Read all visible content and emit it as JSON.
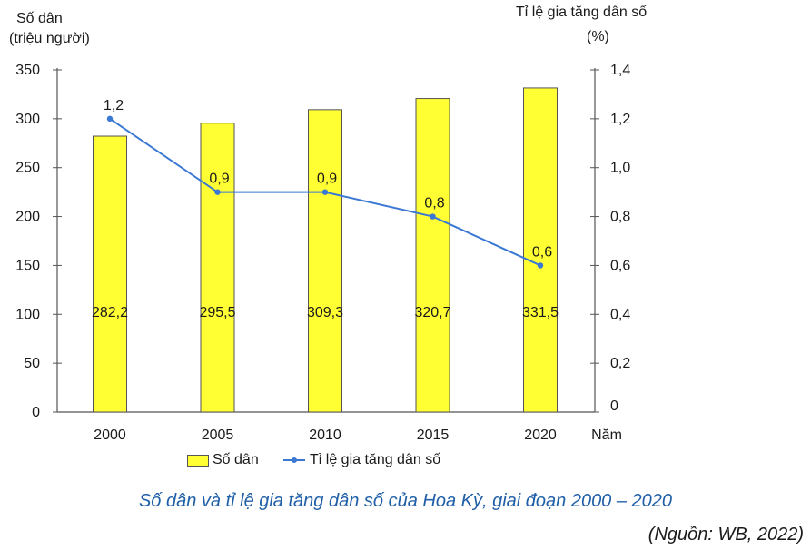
{
  "chart_data": {
    "type": "bar+line",
    "categories": [
      "2000",
      "2005",
      "2010",
      "2015",
      "2020"
    ],
    "series": [
      {
        "name": "Số dân",
        "type": "bar",
        "axis": "left",
        "values": [
          282.2,
          295.5,
          309.3,
          320.7,
          331.5
        ],
        "labels": [
          "282,2",
          "295,5",
          "309,3",
          "320,7",
          "331,5"
        ]
      },
      {
        "name": "Tỉ lệ gia tăng dân số",
        "type": "line",
        "axis": "right",
        "values": [
          1.2,
          0.9,
          0.9,
          0.8,
          0.6
        ],
        "labels": [
          "1,2",
          "0,9",
          "0,9",
          "0,8",
          "0,6"
        ]
      }
    ],
    "left_axis": {
      "label": "Số dân",
      "unit": "(triệu người)",
      "range": [
        0,
        350
      ],
      "ticks": [
        "0",
        "50",
        "100",
        "150",
        "200",
        "250",
        "300",
        "350"
      ]
    },
    "right_axis": {
      "label": "Tỉ lệ gia tăng dân số",
      "unit": "(%)",
      "range": [
        0,
        1.4
      ],
      "ticks": [
        "0",
        "0,2",
        "0,4",
        "0,6",
        "0,8",
        "1,0",
        "1,2",
        "1,4"
      ]
    },
    "xlabel": "Năm",
    "grid": false,
    "legend_position": "bottom",
    "colors": {
      "bar": "#ffff33",
      "bar_border": "#555555",
      "line": "#3a78d4"
    }
  },
  "caption": "Số dân và tỉ lệ gia tăng dân số của Hoa Kỳ, giai đoạn 2000 – 2020",
  "source": "(Nguồn: WB, 2022)"
}
